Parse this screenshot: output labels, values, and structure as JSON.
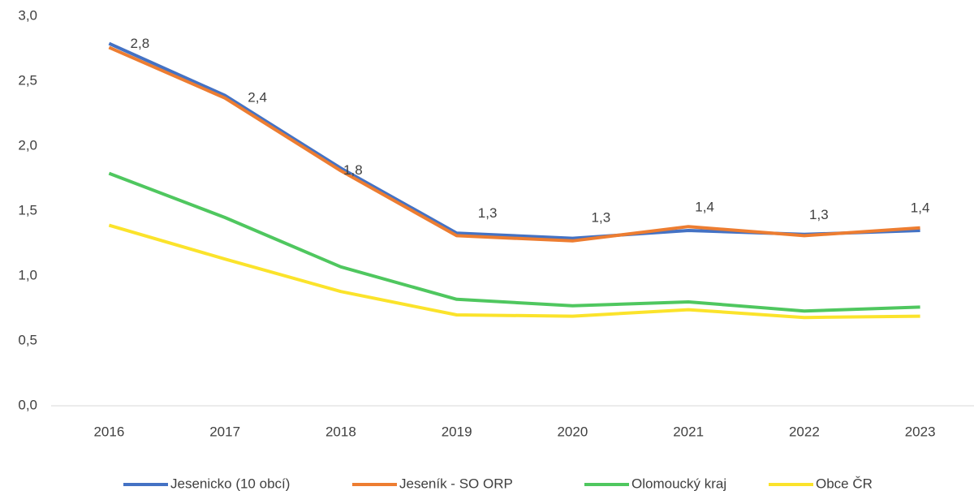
{
  "chart_data": {
    "type": "line",
    "categories": [
      "2016",
      "2017",
      "2018",
      "2019",
      "2020",
      "2021",
      "2022",
      "2023"
    ],
    "series": [
      {
        "name": "Jesenicko (10 obcí)",
        "color": "#4472c4",
        "values": [
          2.79,
          2.39,
          1.83,
          1.33,
          1.29,
          1.35,
          1.32,
          1.35
        ]
      },
      {
        "name": "Jeseník - SO ORP",
        "color": "#ed7d31",
        "values": [
          2.76,
          2.37,
          1.81,
          1.31,
          1.27,
          1.38,
          1.31,
          1.37
        ],
        "value_labels": [
          "2,8",
          "2,4",
          "1,8",
          "1,3",
          "1,3",
          "1,4",
          "1,3",
          "1,4"
        ]
      },
      {
        "name": "Olomoucký kraj",
        "color": "#4fc75f",
        "values": [
          1.79,
          1.45,
          1.07,
          0.82,
          0.77,
          0.8,
          0.73,
          0.76
        ]
      },
      {
        "name": "Obce ČR",
        "color": "#fbe32b",
        "values": [
          1.39,
          1.13,
          0.88,
          0.7,
          0.69,
          0.74,
          0.68,
          0.69
        ]
      }
    ],
    "ylim": [
      0,
      3
    ],
    "yticks": [
      {
        "value": 0,
        "label": "0,0"
      },
      {
        "value": 0.5,
        "label": "0,5"
      },
      {
        "value": 1,
        "label": "1,0"
      },
      {
        "value": 1.5,
        "label": "1,5"
      },
      {
        "value": 2,
        "label": "2,0"
      },
      {
        "value": 2.5,
        "label": "2,5"
      },
      {
        "value": 3,
        "label": "3,0"
      }
    ],
    "grid": false,
    "legend": "bottom"
  }
}
